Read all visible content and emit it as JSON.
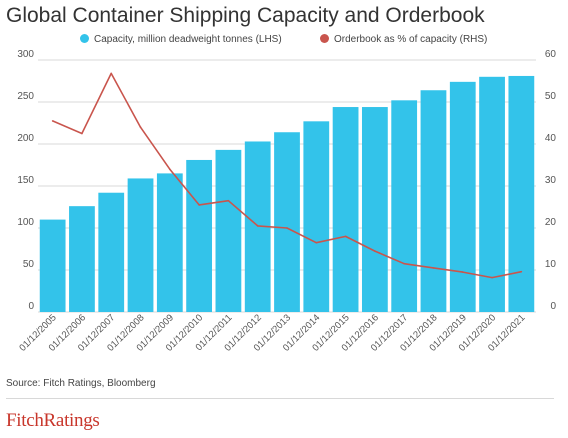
{
  "colors": {
    "capacity": "#33c3ea",
    "orderbook": "#c9554d",
    "brand": "#c8362b"
  },
  "header": {
    "title": "Global Container Shipping Capacity and Orderbook"
  },
  "footer": {
    "source": "Source: Fitch Ratings, Bloomberg",
    "logo_text": "FitchRatings"
  },
  "chart_data": {
    "type": "bar",
    "categories": [
      "01/12/2005",
      "01/12/2006",
      "01/12/2007",
      "01/12/2008",
      "01/12/2009",
      "01/12/2010",
      "01/12/2011",
      "01/12/2012",
      "01/12/2013",
      "01/12/2014",
      "01/12/2015",
      "01/12/2016",
      "01/12/2017",
      "01/12/2018",
      "01/12/2019",
      "01/12/2020",
      "01/12/2021"
    ],
    "series": [
      {
        "name": "Capacity, million deadweight tonnes (LHS)",
        "type": "bar",
        "axis": "left",
        "values": [
          110,
          126,
          142,
          159,
          165,
          181,
          193,
          203,
          214,
          227,
          244,
          244,
          252,
          264,
          274,
          280,
          281
        ]
      },
      {
        "name": "Orderbook as % of capacity (RHS)",
        "type": "line",
        "axis": "right",
        "values": [
          45.5,
          42.5,
          56.8,
          44.0,
          34.0,
          25.5,
          26.5,
          20.5,
          20.0,
          16.5,
          18.0,
          14.5,
          11.5,
          10.5,
          9.5,
          8.2,
          9.6
        ]
      }
    ],
    "y_left": {
      "min": 0,
      "max": 300,
      "ticks": [
        0,
        50,
        100,
        150,
        200,
        250,
        300
      ]
    },
    "y_right": {
      "min": 0,
      "max": 60,
      "ticks": [
        0,
        10,
        20,
        30,
        40,
        50,
        60
      ]
    },
    "grid": "horizontal",
    "legend_position": "top"
  }
}
